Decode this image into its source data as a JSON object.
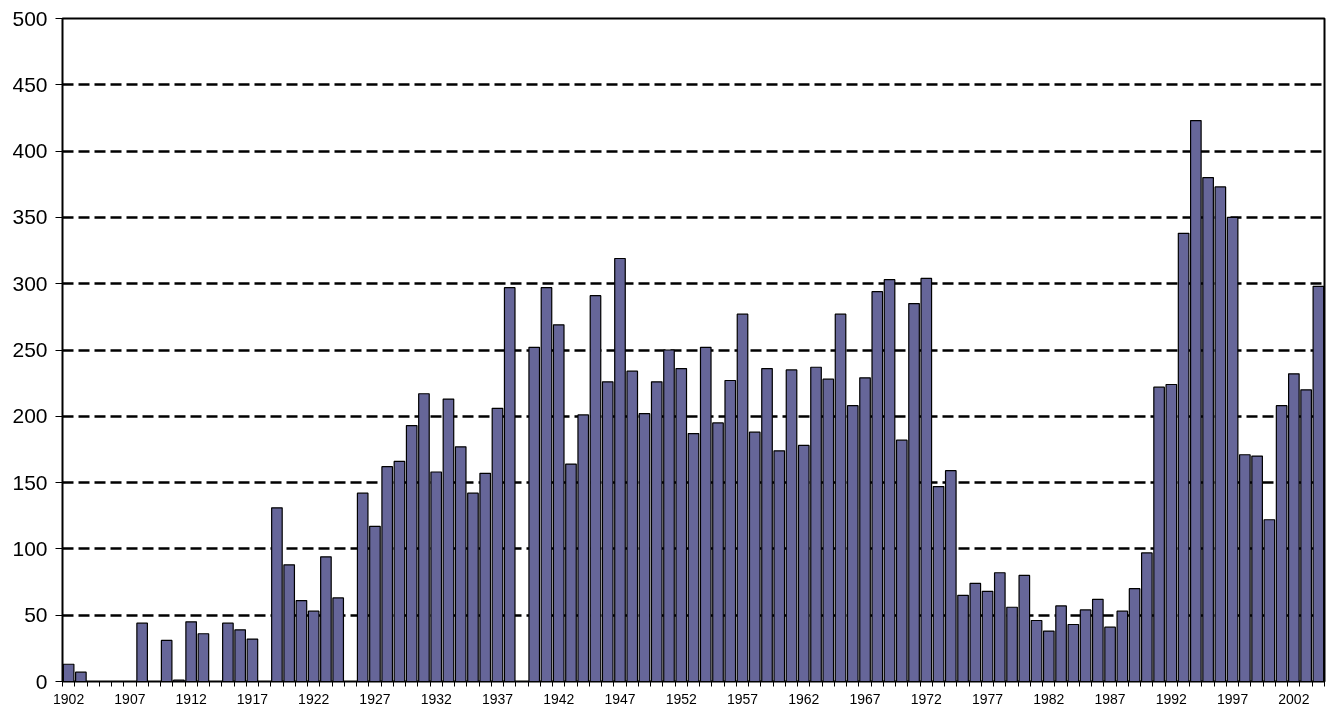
{
  "chart_data": {
    "type": "bar",
    "categories": [
      "1902",
      null,
      null,
      null,
      null,
      "1907",
      null,
      null,
      null,
      null,
      "1912",
      null,
      null,
      null,
      null,
      "1917",
      null,
      null,
      null,
      null,
      "1922",
      null,
      null,
      null,
      null,
      "1927",
      null,
      null,
      null,
      null,
      "1932",
      null,
      null,
      null,
      null,
      "1937",
      null,
      null,
      null,
      null,
      "1942",
      null,
      null,
      null,
      null,
      "1947",
      null,
      null,
      null,
      null,
      "1952",
      null,
      null,
      null,
      null,
      "1957",
      null,
      null,
      null,
      null,
      "1962",
      null,
      null,
      null,
      null,
      "1967",
      null,
      null,
      null,
      null,
      "1972",
      null,
      null,
      null,
      null,
      "1977",
      null,
      null,
      null,
      null,
      "1982",
      null,
      null,
      null,
      null,
      "1987",
      null,
      null,
      null,
      null,
      "1992",
      null,
      null,
      null,
      null,
      "1997",
      null,
      null,
      null,
      null,
      "2002",
      null,
      null
    ],
    "values": [
      13,
      7,
      null,
      null,
      null,
      null,
      44,
      null,
      31,
      1,
      45,
      36,
      null,
      44,
      39,
      32,
      null,
      131,
      88,
      61,
      53,
      94,
      63,
      null,
      142,
      117,
      162,
      166,
      193,
      217,
      158,
      213,
      177,
      142,
      157,
      206,
      297,
      null,
      252,
      297,
      269,
      164,
      201,
      291,
      226,
      319,
      234,
      202,
      226,
      250,
      236,
      187,
      252,
      195,
      227,
      277,
      188,
      236,
      174,
      235,
      178,
      237,
      228,
      277,
      208,
      229,
      294,
      303,
      182,
      285,
      304,
      147,
      159,
      65,
      74,
      68,
      82,
      56,
      80,
      46,
      38,
      57,
      43,
      54,
      62,
      41,
      53,
      70,
      97,
      222,
      224,
      338,
      423,
      380,
      373,
      350,
      171,
      170,
      122,
      208,
      232,
      220,
      298
    ],
    "color": "#666699",
    "ylim": [
      0,
      500
    ],
    "yticks": [
      0,
      50,
      100,
      150,
      200,
      250,
      300,
      350,
      400,
      450,
      500
    ],
    "grid": "y"
  }
}
